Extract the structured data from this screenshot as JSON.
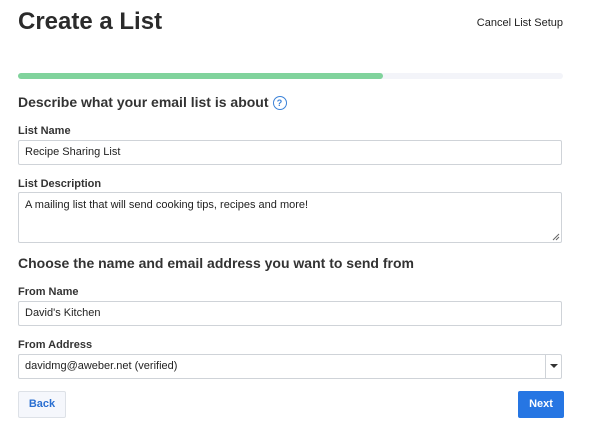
{
  "header": {
    "title": "Create a List",
    "cancel": "Cancel List Setup"
  },
  "progress": 67,
  "sections": [
    {
      "heading": "Describe what your email list is about",
      "help_icon": "?",
      "fields": [
        {
          "label": "List Name",
          "value": "Recipe Sharing List"
        },
        {
          "label": "List Description",
          "value": "A mailing list that will send cooking tips, recipes and more!"
        }
      ]
    },
    {
      "heading": "Choose the name and email address you want to send from",
      "fields": [
        {
          "label": "From Name",
          "value": "David's Kitchen"
        },
        {
          "label": "From Address",
          "value": "davidmg@aweber.net (verified)"
        }
      ]
    }
  ],
  "buttons": {
    "back": "Back",
    "next": "Next"
  }
}
